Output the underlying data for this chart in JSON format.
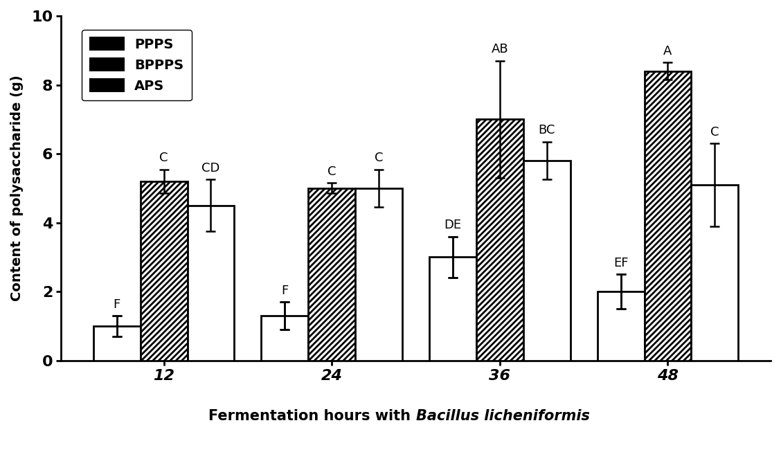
{
  "time_points": [
    12,
    24,
    36,
    48
  ],
  "PPPS_values": [
    1.0,
    1.3,
    3.0,
    2.0
  ],
  "PPPS_errors": [
    0.3,
    0.4,
    0.6,
    0.5
  ],
  "BPPPS_values": [
    5.2,
    5.0,
    7.0,
    8.4
  ],
  "BPPPS_errors": [
    0.35,
    0.15,
    1.7,
    0.25
  ],
  "APS_values": [
    4.5,
    5.0,
    5.8,
    5.1
  ],
  "APS_errors": [
    0.75,
    0.55,
    0.55,
    1.2
  ],
  "PPPS_labels": [
    "F",
    "F",
    "DE",
    "EF"
  ],
  "BPPPS_labels": [
    "C",
    "C",
    "AB",
    "A"
  ],
  "APS_labels": [
    "CD",
    "C",
    "BC",
    "C"
  ],
  "ylabel": "Content of polysaccharide (g)",
  "xlabel_regular": "Fermentation hours with ",
  "xlabel_italic": "Bacillus licheniformis",
  "legend_labels": [
    "PPPS",
    "BPPPS",
    "APS"
  ],
  "ylim": [
    0,
    10
  ],
  "yticks": [
    0,
    2,
    4,
    6,
    8,
    10
  ],
  "bar_width": 0.28,
  "background_color": "#ffffff",
  "bar_edge_color": "#000000",
  "bar_linewidth": 2.0,
  "error_linewidth": 1.8,
  "capsize": 5,
  "ylabel_fontsize": 14,
  "tick_fontsize": 16,
  "legend_fontsize": 14,
  "annotation_fontsize": 13
}
